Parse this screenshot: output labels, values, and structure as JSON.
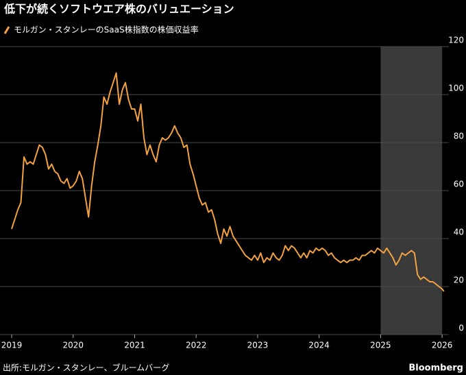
{
  "chart_data": {
    "type": "line",
    "title": "低下が続くソフトウエア株のバリュエーション",
    "source": "出所:モルガン・スタンレー、ブルームバーグ",
    "brand": "Bloomberg",
    "xlim": [
      2018.81,
      2026.11
    ],
    "xticks": [
      2019,
      2020,
      2021,
      2022,
      2023,
      2024,
      2025,
      2026
    ],
    "ylim": [
      0,
      120
    ],
    "yticks": [
      0,
      20,
      40,
      60,
      80,
      100,
      120
    ],
    "grid": true,
    "highlight_x": [
      2025,
      2026
    ],
    "series": [
      {
        "name": "モルガン・スタンレーのSaaS株指数の株価収益率",
        "color": "#f5a340",
        "x": [
          2019,
          2019.05,
          2019.1,
          2019.15,
          2019.2,
          2019.25,
          2019.3,
          2019.35,
          2019.4,
          2019.45,
          2019.5,
          2019.55,
          2019.6,
          2019.65,
          2019.7,
          2019.75,
          2019.8,
          2019.85,
          2019.9,
          2019.95,
          2020,
          2020.05,
          2020.1,
          2020.15,
          2020.2,
          2020.25,
          2020.3,
          2020.35,
          2020.4,
          2020.45,
          2020.5,
          2020.55,
          2020.6,
          2020.65,
          2020.7,
          2020.75,
          2020.8,
          2020.85,
          2020.9,
          2020.95,
          2021,
          2021.05,
          2021.1,
          2021.15,
          2021.2,
          2021.25,
          2021.3,
          2021.35,
          2021.4,
          2021.45,
          2021.5,
          2021.55,
          2021.6,
          2021.65,
          2021.7,
          2021.75,
          2021.8,
          2021.85,
          2021.9,
          2021.95,
          2022,
          2022.05,
          2022.1,
          2022.15,
          2022.2,
          2022.25,
          2022.3,
          2022.35,
          2022.4,
          2022.45,
          2022.5,
          2022.55,
          2022.6,
          2022.65,
          2022.7,
          2022.75,
          2022.8,
          2022.85,
          2022.9,
          2022.95,
          2023,
          2023.05,
          2023.1,
          2023.15,
          2023.2,
          2023.25,
          2023.3,
          2023.35,
          2023.4,
          2023.45,
          2023.5,
          2023.55,
          2023.6,
          2023.65,
          2023.7,
          2023.75,
          2023.8,
          2023.85,
          2023.9,
          2023.95,
          2024,
          2024.05,
          2024.1,
          2024.15,
          2024.2,
          2024.25,
          2024.3,
          2024.35,
          2024.4,
          2024.45,
          2024.5,
          2024.55,
          2024.6,
          2024.65,
          2024.7,
          2024.75,
          2024.8,
          2024.85,
          2024.9,
          2024.95,
          2025,
          2025.05,
          2025.1,
          2025.15,
          2025.2,
          2025.25,
          2025.3,
          2025.35,
          2025.4,
          2025.45,
          2025.5,
          2025.55,
          2025.6,
          2025.65,
          2025.7,
          2025.75,
          2025.8,
          2025.85,
          2025.9,
          2025.95,
          2026,
          2026.03
        ],
        "values": [
          44,
          48,
          52,
          55,
          74,
          71,
          72,
          71,
          75,
          79,
          78,
          75,
          69,
          71,
          68,
          67,
          64,
          63,
          65,
          61,
          62,
          64,
          68,
          65,
          57,
          49,
          62,
          72,
          79,
          87,
          99,
          96,
          101,
          105,
          109,
          96,
          102,
          105,
          98,
          94,
          94,
          89,
          96,
          82,
          75,
          79,
          75,
          72,
          79,
          82,
          81,
          82,
          84,
          87,
          84,
          82,
          78,
          79,
          71,
          67,
          62,
          57,
          54,
          55,
          51,
          52,
          48,
          42,
          38,
          44,
          41,
          45,
          41,
          39,
          37,
          35,
          33,
          32,
          31,
          33,
          31,
          34,
          30,
          32,
          31,
          34,
          32,
          31,
          33,
          37,
          35,
          37,
          36,
          34,
          32,
          34,
          32,
          35,
          34,
          36,
          35,
          36,
          35,
          33,
          34,
          32,
          31,
          30,
          31,
          30,
          31,
          31,
          32,
          31,
          33,
          33,
          34,
          35,
          34,
          36,
          35,
          34,
          36,
          34,
          32,
          29,
          31,
          34,
          33,
          34,
          35,
          34,
          25,
          23,
          24,
          23,
          22,
          22,
          21,
          20,
          19,
          18
        ]
      }
    ]
  }
}
